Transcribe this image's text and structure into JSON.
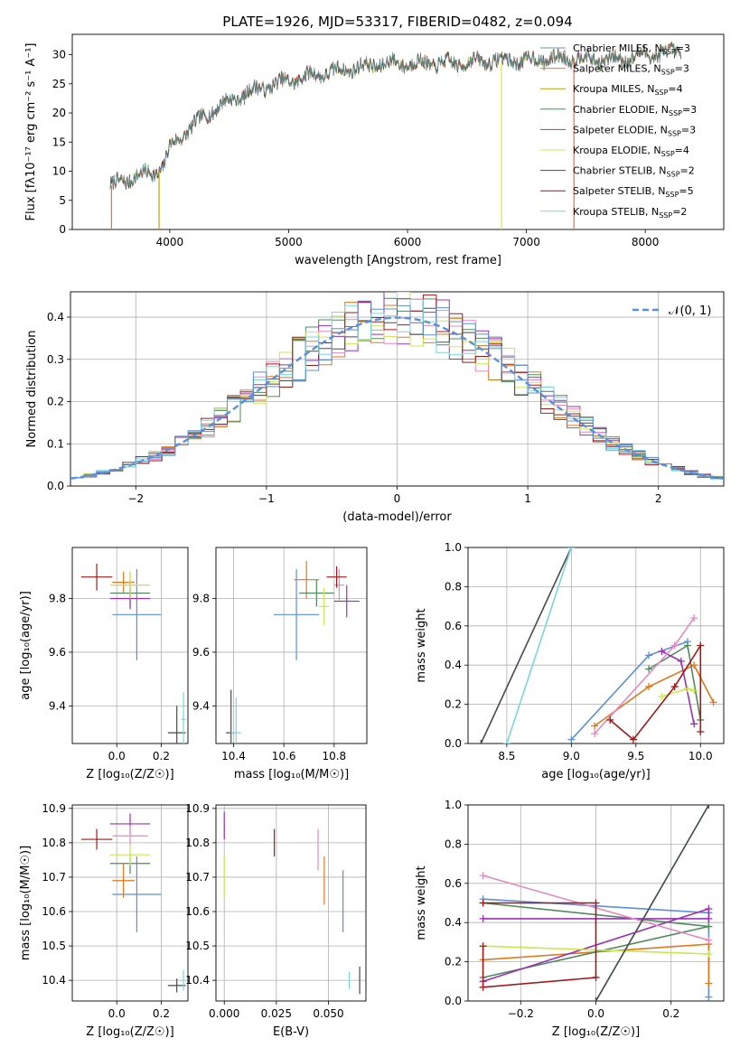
{
  "title": "PLATE=1926, MJD=53317, FIBERID=0482, z=0.094",
  "colors": {
    "Chabrier MILES": "#5f9ea0",
    "Salpeter MILES": "#e8733a",
    "Kroupa MILES": "#c8a000",
    "Chabrier ELODIE": "#4f8a5e",
    "Salpeter ELODIE": "#9b30b5",
    "Kroupa ELODIE": "#d4e84e",
    "Chabrier STELIB": "#4a4a4a",
    "Salpeter STELIB": "#a01818",
    "Kroupa STELIB": "#7ad6dc",
    "blue": "#5b8fd9",
    "orange": "#e0781e",
    "green": "#4f8a5e",
    "purple": "#9b30b5",
    "pink": "#e38ac3",
    "lime": "#c9e84e",
    "darkred": "#a01818",
    "gray": "#4a4a4a",
    "cyan": "#7ad6dc"
  },
  "chart_data": [
    {
      "type": "line",
      "id": "spectrum",
      "xlabel": "wavelength [Angstrom, rest frame]",
      "ylabel": "Flux [fλ10⁻¹⁷ erg cm⁻² s⁻¹ A⁻¹]",
      "xlim": [
        3180,
        8660
      ],
      "ylim": [
        0,
        33.5
      ],
      "xticks": [
        4000,
        5000,
        6000,
        7000,
        8000
      ],
      "yticks": [
        0,
        5,
        10,
        15,
        20,
        25,
        30
      ],
      "grid": false,
      "legend_position": "top-right",
      "legend": [
        {
          "prefix": "Chabrier MILES, N",
          "sub": "SSP",
          "suffix": "=3",
          "color": "Chabrier MILES"
        },
        {
          "prefix": "Salpeter MILES, N",
          "sub": "SSP",
          "suffix": "=3",
          "color": "Salpeter MILES"
        },
        {
          "prefix": "Kroupa MILES, N",
          "sub": "SSP",
          "suffix": "=4",
          "color": "Kroupa MILES"
        },
        {
          "prefix": "Chabrier ELODIE, N",
          "sub": "SSP",
          "suffix": "=3",
          "color": "Chabrier ELODIE"
        },
        {
          "prefix": "Salpeter ELODIE, N",
          "sub": "SSP",
          "suffix": "=3",
          "color": "Salpeter ELODIE"
        },
        {
          "prefix": "Kroupa ELODIE, N",
          "sub": "SSP",
          "suffix": "=4",
          "color": "Kroupa ELODIE"
        },
        {
          "prefix": "Chabrier STELIB, N",
          "sub": "SSP",
          "suffix": "=2",
          "color": "Chabrier STELIB"
        },
        {
          "prefix": "Salpeter STELIB, N",
          "sub": "SSP",
          "suffix": "=5",
          "color": "Salpeter STELIB"
        },
        {
          "prefix": "Kroupa STELIB, N",
          "sub": "SSP",
          "suffix": "=2",
          "color": "Kroupa STELIB"
        }
      ],
      "continuum": [
        [
          3500,
          7.5
        ],
        [
          3700,
          9
        ],
        [
          3900,
          10
        ],
        [
          3950,
          11
        ],
        [
          4000,
          14
        ],
        [
          4200,
          18
        ],
        [
          4400,
          21
        ],
        [
          4600,
          23
        ],
        [
          4800,
          24.5
        ],
        [
          5000,
          25.5
        ],
        [
          5200,
          26.5
        ],
        [
          5500,
          27.5
        ],
        [
          5800,
          28.5
        ],
        [
          6100,
          28.5
        ],
        [
          6400,
          28.5
        ],
        [
          6700,
          29
        ],
        [
          7000,
          29
        ],
        [
          7400,
          29.5
        ],
        [
          7700,
          29
        ],
        [
          8000,
          30
        ],
        [
          8300,
          30.5
        ]
      ],
      "spikes": [
        {
          "x": 3510,
          "y_min": 0,
          "color": "Salpeter MILES"
        },
        {
          "x": 3910,
          "y_min": 0,
          "color": "Kroupa MILES"
        },
        {
          "x": 6790,
          "y_min": 0,
          "color": "Kroupa ELODIE"
        },
        {
          "x": 7400,
          "y_min": 0,
          "color": "Salpeter MILES"
        }
      ]
    },
    {
      "type": "line",
      "id": "residuals",
      "xlabel": "(data-model)/error",
      "ylabel": "Normed distribution",
      "xlim": [
        -2.5,
        2.5
      ],
      "ylim": [
        0,
        0.46
      ],
      "xticks": [
        -2,
        -1,
        0,
        1,
        2
      ],
      "yticks": [
        0.0,
        0.1,
        0.2,
        0.3,
        0.4
      ],
      "grid": true,
      "legend": "𝒩(0, 1)",
      "legend_position": "top-right"
    },
    {
      "type": "scatter",
      "id": "age_vs_Z",
      "xlabel": "Z [log₁₀(Z/Z☉)]",
      "ylabel": "age  [log₁₀(age/yr)]",
      "xlim": [
        -0.2,
        0.32
      ],
      "ylim": [
        9.26,
        9.99
      ],
      "xticks": [
        0.0,
        0.2
      ],
      "yticks": [
        9.4,
        9.6,
        9.8
      ],
      "grid": true,
      "points": [
        {
          "x": 0.09,
          "y": 9.74,
          "xerr": 0.11,
          "yerr": 0.17,
          "color": "blue"
        },
        {
          "x": 0.03,
          "y": 9.86,
          "xerr": 0.05,
          "yerr": 0.04,
          "color": "orange"
        },
        {
          "x": 0.06,
          "y": 9.82,
          "xerr": 0.09,
          "yerr": 0.05,
          "color": "green"
        },
        {
          "x": 0.06,
          "y": 9.8,
          "xerr": 0.09,
          "yerr": 0.04,
          "color": "purple"
        },
        {
          "x": 0.06,
          "y": 9.85,
          "xerr": 0.08,
          "yerr": 0.05,
          "color": "pink"
        },
        {
          "x": 0.06,
          "y": 9.85,
          "xerr": 0.09,
          "yerr": 0.05,
          "color": "lime"
        },
        {
          "x": -0.09,
          "y": 9.88,
          "xerr": 0.07,
          "yerr": 0.05,
          "color": "darkred"
        },
        {
          "x": 0.27,
          "y": 9.3,
          "xerr": 0.04,
          "yerr": 0.1,
          "color": "gray"
        },
        {
          "x": 0.3,
          "y": 9.35,
          "xerr": 0.01,
          "yerr": 0.1,
          "color": "cyan"
        }
      ]
    },
    {
      "type": "scatter",
      "id": "age_vs_mass",
      "xlabel": "mass [log₁₀(M/M☉)]",
      "ylabel": "",
      "xlim": [
        10.33,
        10.93
      ],
      "ylim": [
        9.26,
        9.99
      ],
      "xticks": [
        10.4,
        10.6,
        10.8
      ],
      "yticks": [
        9.4,
        9.6,
        9.8
      ],
      "grid": true,
      "points": [
        {
          "x": 10.65,
          "y": 9.74,
          "xerr": 0.09,
          "yerr": 0.17,
          "color": "blue"
        },
        {
          "x": 10.69,
          "y": 9.87,
          "xerr": 0.05,
          "yerr": 0.07,
          "color": "orange"
        },
        {
          "x": 10.73,
          "y": 9.82,
          "xerr": 0.07,
          "yerr": 0.05,
          "color": "green"
        },
        {
          "x": 10.85,
          "y": 9.79,
          "xerr": 0.05,
          "yerr": 0.06,
          "color": "purple"
        },
        {
          "x": 10.82,
          "y": 9.85,
          "xerr": 0.02,
          "yerr": 0.06,
          "color": "pink"
        },
        {
          "x": 10.76,
          "y": 9.77,
          "xerr": 0.02,
          "yerr": 0.07,
          "color": "lime"
        },
        {
          "x": 10.81,
          "y": 9.88,
          "xerr": 0.04,
          "yerr": 0.04,
          "color": "darkred"
        },
        {
          "x": 10.39,
          "y": 9.3,
          "xerr": 0.02,
          "yerr": 0.16,
          "color": "gray"
        },
        {
          "x": 10.41,
          "y": 9.3,
          "xerr": 0.02,
          "yerr": 0.13,
          "color": "cyan"
        }
      ]
    },
    {
      "type": "line",
      "id": "weight_vs_age",
      "xlabel": "age  [log₁₀(age/yr)]",
      "ylabel": "mass weight",
      "xlim": [
        8.2,
        10.18
      ],
      "ylim": [
        0,
        1.0
      ],
      "xticks": [
        8.5,
        9.0,
        9.5,
        10.0
      ],
      "yticks": [
        0.0,
        0.2,
        0.4,
        0.6,
        0.8,
        1.0
      ],
      "grid": true,
      "series": [
        {
          "color": "gray",
          "x": [
            8.3,
            9.0
          ],
          "y": [
            0.0,
            1.0
          ]
        },
        {
          "color": "cyan",
          "x": [
            8.5,
            9.0
          ],
          "y": [
            0.0,
            1.0
          ]
        },
        {
          "color": "blue",
          "x": [
            9.0,
            9.6,
            9.9
          ],
          "y": [
            0.02,
            0.45,
            0.52
          ]
        },
        {
          "color": "orange",
          "x": [
            9.18,
            9.6,
            9.95,
            10.1
          ],
          "y": [
            0.09,
            0.29,
            0.4,
            0.21
          ]
        },
        {
          "color": "green",
          "x": [
            9.6,
            9.9,
            10.0
          ],
          "y": [
            0.38,
            0.5,
            0.12
          ]
        },
        {
          "color": "purple",
          "x": [
            9.7,
            9.85,
            9.95
          ],
          "y": [
            0.47,
            0.42,
            0.1
          ]
        },
        {
          "color": "pink",
          "x": [
            9.18,
            9.8,
            9.95
          ],
          "y": [
            0.05,
            0.5,
            0.64
          ]
        },
        {
          "color": "lime",
          "x": [
            9.7,
            9.9,
            9.95
          ],
          "y": [
            0.24,
            0.28,
            0.27
          ]
        },
        {
          "color": "darkred",
          "x": [
            9.3,
            9.48,
            9.8,
            10.0,
            10.0
          ],
          "y": [
            0.12,
            0.02,
            0.29,
            0.5,
            0.06
          ]
        }
      ]
    },
    {
      "type": "scatter",
      "id": "mass_vs_Z",
      "xlabel": "Z [log₁₀(Z/Z☉)]",
      "ylabel": "mass [log₁₀(M/M☉)]",
      "xlim": [
        -0.2,
        0.32
      ],
      "ylim": [
        10.34,
        10.91
      ],
      "xticks": [
        0.0,
        0.2
      ],
      "yticks": [
        10.4,
        10.5,
        10.6,
        10.7,
        10.8,
        10.9
      ],
      "grid": true,
      "points": [
        {
          "x": 0.09,
          "y": 10.65,
          "xerr": 0.11,
          "yerr": 0.11,
          "color": "blue"
        },
        {
          "x": 0.03,
          "y": 10.69,
          "xerr": 0.05,
          "yerr": 0.05,
          "color": "orange"
        },
        {
          "x": 0.06,
          "y": 10.74,
          "xerr": 0.09,
          "yerr": 0.03,
          "color": "green"
        },
        {
          "x": 0.06,
          "y": 10.855,
          "xerr": 0.09,
          "yerr": 0.03,
          "color": "purple"
        },
        {
          "x": 0.06,
          "y": 10.82,
          "xerr": 0.08,
          "yerr": 0.03,
          "color": "pink"
        },
        {
          "x": 0.06,
          "y": 10.765,
          "xerr": 0.09,
          "yerr": 0.03,
          "color": "lime"
        },
        {
          "x": -0.09,
          "y": 10.81,
          "xerr": 0.07,
          "yerr": 0.03,
          "color": "darkred"
        },
        {
          "x": 0.27,
          "y": 10.385,
          "xerr": 0.04,
          "yerr": 0.02,
          "color": "gray"
        },
        {
          "x": 0.3,
          "y": 10.4,
          "xerr": 0.01,
          "yerr": 0.03,
          "color": "cyan"
        }
      ]
    },
    {
      "type": "scatter",
      "id": "mass_vs_ebv",
      "xlabel": "E(B-V)",
      "ylabel": "",
      "xlim": [
        -0.004,
        0.068
      ],
      "ylim": [
        10.34,
        10.91
      ],
      "xticks": [
        0.0,
        0.025,
        0.05
      ],
      "xticklabels": [
        "0.000",
        "0.025",
        "0.050"
      ],
      "yticks": [
        10.4,
        10.5,
        10.6,
        10.7,
        10.8,
        10.9
      ],
      "grid": true,
      "points": [
        {
          "x": 0.057,
          "y": 10.63,
          "xerr": 0,
          "yerr": 0.09,
          "color": "blue"
        },
        {
          "x": 0.048,
          "y": 10.69,
          "xerr": 0,
          "yerr": 0.07,
          "color": "orange"
        },
        {
          "x": 0.0,
          "y": 10.7,
          "xerr": 0,
          "yerr": 0.06,
          "color": "lime"
        },
        {
          "x": 0.0,
          "y": 10.85,
          "xerr": 0,
          "yerr": 0.04,
          "color": "purple"
        },
        {
          "x": 0.045,
          "y": 10.78,
          "xerr": 0,
          "yerr": 0.06,
          "color": "pink"
        },
        {
          "x": 0.024,
          "y": 10.8,
          "xerr": 0,
          "yerr": 0.04,
          "color": "darkred"
        },
        {
          "x": 0.065,
          "y": 10.4,
          "xerr": 0,
          "yerr": 0.04,
          "color": "gray"
        },
        {
          "x": 0.06,
          "y": 10.4,
          "xerr": 0,
          "yerr": 0.025,
          "color": "cyan"
        }
      ]
    },
    {
      "type": "line",
      "id": "weight_vs_Z",
      "xlabel": "Z [log₁₀(Z/Z☉)]",
      "ylabel": "mass weight",
      "xlim": [
        -0.34,
        0.34
      ],
      "ylim": [
        0,
        1.0
      ],
      "xticks": [
        -0.2,
        0.0,
        0.2
      ],
      "yticks": [
        0.0,
        0.2,
        0.4,
        0.6,
        0.8,
        1.0
      ],
      "grid": true,
      "series": [
        {
          "color": "blue",
          "x": [
            -0.3,
            0.3,
            0.3
          ],
          "y": [
            0.52,
            0.45,
            0.02
          ]
        },
        {
          "color": "orange",
          "x": [
            -0.3,
            0.3,
            0.3
          ],
          "y": [
            0.21,
            0.29,
            0.09
          ]
        },
        {
          "color": "green",
          "x": [
            -0.3,
            0.3,
            -0.3
          ],
          "y": [
            0.12,
            0.38,
            0.5
          ]
        },
        {
          "color": "purple",
          "x": [
            -0.3,
            0.3,
            0.3,
            -0.3
          ],
          "y": [
            0.1,
            0.47,
            0.42,
            0.42
          ]
        },
        {
          "color": "pink",
          "x": [
            -0.3,
            0.3
          ],
          "y": [
            0.64,
            0.31
          ]
        },
        {
          "color": "lime",
          "x": [
            -0.3,
            0.3
          ],
          "y": [
            0.28,
            0.24
          ]
        },
        {
          "color": "darkred",
          "x": [
            -0.3,
            -0.3,
            0.0,
            0.0,
            -0.3
          ],
          "y": [
            0.28,
            0.07,
            0.12,
            0.5,
            0.5
          ]
        },
        {
          "color": "cyan",
          "x": [
            0.0,
            0.3
          ],
          "y": [
            0.0,
            1.0
          ]
        },
        {
          "color": "gray",
          "x": [
            0.0,
            0.3
          ],
          "y": [
            0.0,
            1.0
          ]
        }
      ]
    }
  ]
}
